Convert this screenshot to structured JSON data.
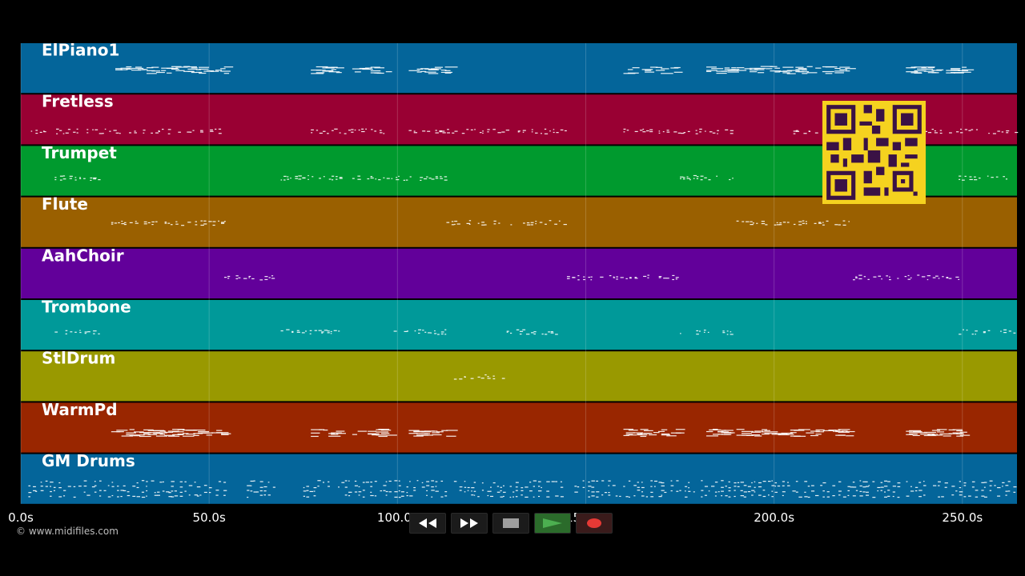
{
  "tracks": [
    {
      "name": "ElPiano1",
      "color": "#04659a"
    },
    {
      "name": "Fretless",
      "color": "#990033"
    },
    {
      "name": "Trumpet",
      "color": "#009a2e"
    },
    {
      "name": "Flute",
      "color": "#9a6000"
    },
    {
      "name": "AahChoir",
      "color": "#62009a"
    },
    {
      "name": "Trombone",
      "color": "#009999"
    },
    {
      "name": "StlDrum",
      "color": "#999900"
    },
    {
      "name": "WarmPd",
      "color": "#992600"
    },
    {
      "name": "GM Drums",
      "color": "#04659a"
    }
  ],
  "time_axis": {
    "min": 0,
    "max": 264.5,
    "ticks": [
      {
        "value": 0,
        "label": "0.0s"
      },
      {
        "value": 50,
        "label": "50.0s"
      },
      {
        "value": 100,
        "label": "100.0s"
      },
      {
        "value": 150,
        "label": "150.0s"
      },
      {
        "value": 200,
        "label": "200.0s"
      },
      {
        "value": 250,
        "label": "250.0s"
      }
    ]
  },
  "note_segments": [
    [
      [
        24,
        54
      ],
      [
        77,
        84
      ],
      [
        88,
        98
      ],
      [
        103,
        113
      ],
      [
        160,
        174
      ],
      [
        182,
        189
      ],
      [
        190,
        220
      ],
      [
        235,
        250
      ]
    ],
    [
      [
        2,
        54
      ],
      [
        77,
        97
      ],
      [
        103,
        146
      ],
      [
        160,
        189
      ],
      [
        204,
        212
      ],
      [
        240,
        264
      ]
    ],
    [
      [
        9,
        21
      ],
      [
        69,
        85
      ],
      [
        88,
        113
      ],
      [
        175,
        189
      ],
      [
        249,
        264
      ]
    ],
    [
      [
        24,
        54
      ],
      [
        113,
        145
      ],
      [
        190,
        220
      ]
    ],
    [
      [
        54,
        68
      ],
      [
        145,
        174
      ],
      [
        220,
        249
      ]
    ],
    [
      [
        9,
        21
      ],
      [
        69,
        85
      ],
      [
        99,
        113
      ],
      [
        129,
        143
      ],
      [
        175,
        189
      ],
      [
        249,
        264
      ]
    ],
    [
      [
        115,
        129
      ]
    ],
    [
      [
        24,
        54
      ],
      [
        77,
        84
      ],
      [
        88,
        98
      ],
      [
        103,
        113
      ],
      [
        160,
        174
      ],
      [
        182,
        189
      ],
      [
        190,
        220
      ],
      [
        235,
        250
      ]
    ],
    [
      [
        2,
        54
      ],
      [
        60,
        68
      ],
      [
        75,
        113
      ],
      [
        115,
        144
      ],
      [
        147,
        264
      ]
    ]
  ],
  "transport": {
    "buttons": [
      {
        "name": "rewind-button",
        "icon": "rewind-icon"
      },
      {
        "name": "fast-forward-button",
        "icon": "fast-forward-icon"
      },
      {
        "name": "stop-button",
        "icon": "stop-icon"
      },
      {
        "name": "play-button",
        "icon": "play-icon"
      },
      {
        "name": "record-button",
        "icon": "record-icon"
      }
    ],
    "play_color": "#4caf50",
    "record_color": "#e53935"
  },
  "qr_code": {
    "icon": "qr-code-icon",
    "color": "#f5d21f"
  },
  "copyright": "© www.midifiles.com"
}
